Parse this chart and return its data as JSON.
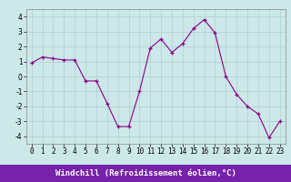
{
  "x": [
    0,
    1,
    2,
    3,
    4,
    5,
    6,
    7,
    8,
    9,
    10,
    11,
    12,
    13,
    14,
    15,
    16,
    17,
    18,
    19,
    20,
    21,
    22,
    23
  ],
  "y": [
    0.9,
    1.3,
    1.2,
    1.1,
    1.1,
    -0.3,
    -0.3,
    -1.8,
    -3.35,
    -3.35,
    -1.0,
    1.9,
    2.5,
    1.6,
    2.2,
    3.2,
    3.8,
    2.9,
    0.0,
    -1.2,
    -2.0,
    -2.5,
    -4.1,
    -3.0
  ],
  "line_color": "#880088",
  "marker": "+",
  "marker_size": 3,
  "bg_color": "#cce8e8",
  "grid_color": "#b0d0d0",
  "xlabel": "Windchill (Refroidissement éolien,°C)",
  "xlabel_bg": "#7722aa",
  "xlabel_color": "#ffffff",
  "ylim": [
    -4.5,
    4.5
  ],
  "xlim": [
    -0.5,
    23.5
  ],
  "yticks": [
    -4,
    -3,
    -2,
    -1,
    0,
    1,
    2,
    3,
    4
  ],
  "xticks": [
    0,
    1,
    2,
    3,
    4,
    5,
    6,
    7,
    8,
    9,
    10,
    11,
    12,
    13,
    14,
    15,
    16,
    17,
    18,
    19,
    20,
    21,
    22,
    23
  ],
  "tick_fontsize": 5.5,
  "xlabel_fontsize": 6.5,
  "spine_color": "#888888"
}
